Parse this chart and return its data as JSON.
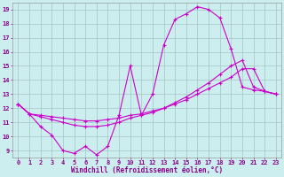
{
  "xlabel": "Windchill (Refroidissement éolien,°C)",
  "bg_color": "#cceeee",
  "grid_color": "#aacccc",
  "line_color": "#cc00cc",
  "xlim": [
    -0.5,
    23.5
  ],
  "ylim": [
    8.5,
    19.5
  ],
  "xticks": [
    0,
    1,
    2,
    3,
    4,
    5,
    6,
    7,
    8,
    9,
    10,
    11,
    12,
    13,
    14,
    15,
    16,
    17,
    18,
    19,
    20,
    21,
    22,
    23
  ],
  "yticks": [
    9,
    10,
    11,
    12,
    13,
    14,
    15,
    16,
    17,
    18,
    19
  ],
  "line1_x": [
    0,
    1,
    2,
    3,
    4,
    5,
    6,
    7,
    8,
    9,
    10,
    11,
    12,
    13,
    14,
    15,
    16,
    17,
    18,
    19,
    20,
    21,
    22,
    23
  ],
  "line1_y": [
    12.3,
    11.6,
    10.7,
    10.1,
    9.0,
    8.8,
    9.3,
    8.7,
    9.3,
    11.5,
    15.0,
    11.5,
    13.0,
    16.5,
    18.3,
    18.7,
    19.2,
    19.0,
    18.4,
    16.2,
    13.5,
    13.3,
    13.2,
    13.0
  ],
  "line2_x": [
    0,
    1,
    2,
    3,
    4,
    5,
    6,
    7,
    8,
    9,
    10,
    11,
    12,
    13,
    14,
    15,
    16,
    17,
    18,
    19,
    20,
    21,
    22,
    23
  ],
  "line2_y": [
    12.3,
    11.6,
    11.5,
    11.4,
    11.3,
    11.2,
    11.1,
    11.1,
    11.2,
    11.3,
    11.5,
    11.6,
    11.8,
    12.0,
    12.3,
    12.6,
    13.0,
    13.4,
    13.8,
    14.2,
    14.8,
    14.8,
    13.2,
    13.0
  ],
  "line3_x": [
    0,
    1,
    2,
    3,
    4,
    5,
    6,
    7,
    8,
    9,
    10,
    11,
    12,
    13,
    14,
    15,
    16,
    17,
    18,
    19,
    20,
    21,
    22,
    23
  ],
  "line3_y": [
    12.3,
    11.6,
    11.4,
    11.2,
    11.0,
    10.8,
    10.7,
    10.7,
    10.8,
    11.0,
    11.3,
    11.5,
    11.7,
    12.0,
    12.4,
    12.8,
    13.3,
    13.8,
    14.4,
    15.0,
    15.4,
    13.5,
    13.2,
    13.0
  ]
}
